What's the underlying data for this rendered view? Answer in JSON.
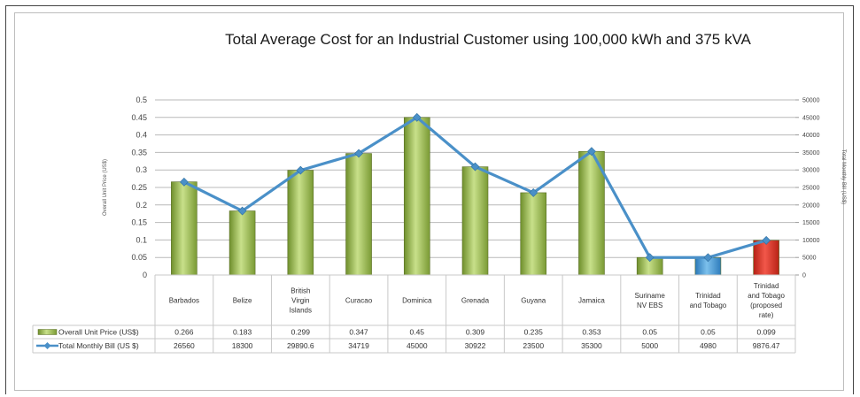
{
  "chart_data": {
    "type": "bar",
    "title": "Total Average Cost for an Industrial Customer using 100,000 kWh and 375 kVA",
    "ylabel_left": "Overall Unit Price (US$)",
    "ylabel_right": "Total Monthly Bill (US$)",
    "ylim_left": [
      0,
      0.5
    ],
    "ylim_right": [
      0,
      50000
    ],
    "yticks_left": [
      "0",
      "0.05",
      "0.1",
      "0.15",
      "0.2",
      "0.25",
      "0.3",
      "0.35",
      "0.4",
      "0.45",
      "0.5"
    ],
    "yticks_right": [
      "0",
      "5000",
      "10000",
      "15000",
      "20000",
      "25000",
      "30000",
      "35000",
      "40000",
      "45000",
      "50000"
    ],
    "grid": true,
    "categories": [
      [
        "Barbados"
      ],
      [
        "Belize"
      ],
      [
        "British",
        "Virgin",
        "Islands"
      ],
      [
        "Curacao"
      ],
      [
        "Dominica"
      ],
      [
        "Grenada"
      ],
      [
        "Guyana"
      ],
      [
        "Jamaica"
      ],
      [
        "Suriname",
        "NV EBS"
      ],
      [
        "Trinidad",
        "and Tobago"
      ],
      [
        "Trinidad",
        "and Tobago",
        "(proposed",
        "rate)"
      ]
    ],
    "series": [
      {
        "name": "Overall Unit Price (US$)",
        "type": "bar",
        "axis": "left",
        "values": [
          0.266,
          0.183,
          0.299,
          0.347,
          0.45,
          0.309,
          0.235,
          0.353,
          0.05,
          0.05,
          0.099
        ],
        "labels": [
          "0.266",
          "0.183",
          "0.299",
          "0.347",
          "0.45",
          "0.309",
          "0.235",
          "0.353",
          "0.05",
          "0.05",
          "0.099"
        ],
        "color": "#9bbb59",
        "point_colors": [
          "#9bbb59",
          "#9bbb59",
          "#9bbb59",
          "#9bbb59",
          "#9bbb59",
          "#9bbb59",
          "#9bbb59",
          "#9bbb59",
          "#9bbb59",
          "#4f9fd6",
          "#e03a26"
        ]
      },
      {
        "name": "Total Monthly Bill (US $)",
        "type": "line",
        "axis": "right",
        "values": [
          26560,
          18300,
          29890.6,
          34719,
          45000,
          30922,
          23500,
          35300,
          5000,
          4980,
          9876.47
        ],
        "labels": [
          "26560",
          "18300",
          "29890.6",
          "34719",
          "45000",
          "30922",
          "23500",
          "35300",
          "5000",
          "4980",
          "9876.47"
        ],
        "color": "#4a90c8"
      }
    ]
  }
}
